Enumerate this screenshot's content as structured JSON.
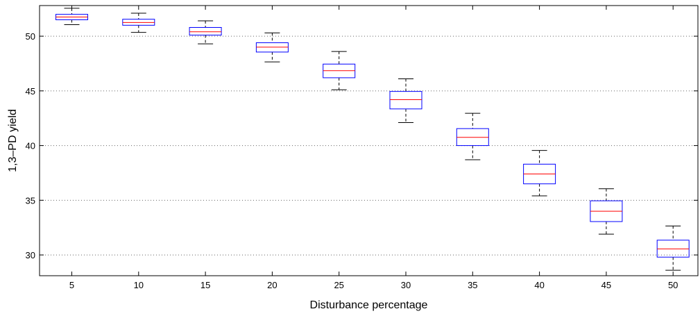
{
  "chart_data": {
    "type": "box",
    "xlabel": "Disturbance percentage",
    "ylabel": "1,3–PD yield",
    "categories": [
      "5",
      "10",
      "15",
      "20",
      "25",
      "30",
      "35",
      "40",
      "45",
      "50"
    ],
    "y_ticks": [
      30,
      35,
      40,
      45,
      50
    ],
    "y_tick_labels": [
      "30",
      "35",
      "40",
      "45",
      "50"
    ],
    "ylim": [
      28.1,
      52.8
    ],
    "grid": "y-dotted",
    "boxes": [
      {
        "category": "5",
        "whisker_low": 51.05,
        "q1": 51.5,
        "median": 51.75,
        "q3": 52.0,
        "whisker_high": 52.55
      },
      {
        "category": "10",
        "whisker_low": 50.35,
        "q1": 51.0,
        "median": 51.25,
        "q3": 51.55,
        "whisker_high": 52.1
      },
      {
        "category": "15",
        "whisker_low": 49.3,
        "q1": 50.1,
        "median": 50.4,
        "q3": 50.8,
        "whisker_high": 51.4
      },
      {
        "category": "20",
        "whisker_low": 47.65,
        "q1": 48.55,
        "median": 49.0,
        "q3": 49.4,
        "whisker_high": 50.3
      },
      {
        "category": "25",
        "whisker_low": 45.1,
        "q1": 46.2,
        "median": 46.85,
        "q3": 47.45,
        "whisker_high": 48.6
      },
      {
        "category": "30",
        "whisker_low": 42.1,
        "q1": 43.35,
        "median": 44.2,
        "q3": 44.95,
        "whisker_high": 46.1
      },
      {
        "category": "35",
        "whisker_low": 38.7,
        "q1": 40.0,
        "median": 40.75,
        "q3": 41.55,
        "whisker_high": 42.95
      },
      {
        "category": "40",
        "whisker_low": 35.4,
        "q1": 36.5,
        "median": 37.4,
        "q3": 38.3,
        "whisker_high": 39.55
      },
      {
        "category": "45",
        "whisker_low": 31.9,
        "q1": 33.05,
        "median": 34.0,
        "q3": 34.95,
        "whisker_high": 36.05
      },
      {
        "category": "50",
        "whisker_low": 28.6,
        "q1": 29.8,
        "median": 30.55,
        "q3": 31.35,
        "whisker_high": 32.65
      }
    ],
    "colors": {
      "box": "#0000ff",
      "median": "#ff0000",
      "whisker": "#000000",
      "grid": "#666666",
      "axis": "#000000"
    }
  }
}
